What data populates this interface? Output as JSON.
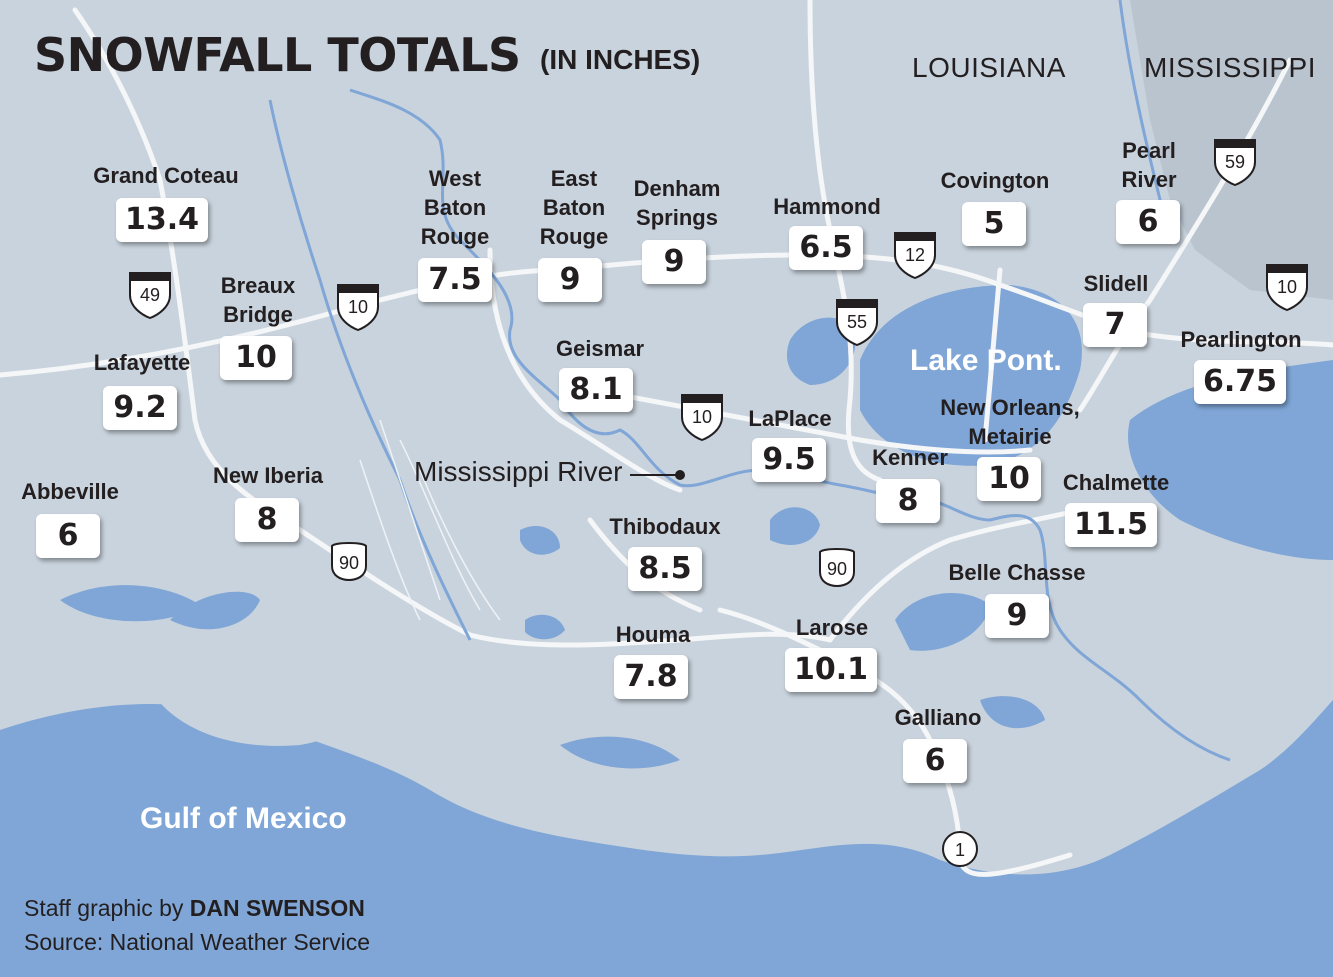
{
  "title": "SNOWFALL TOTALS",
  "subtitle": "(IN INCHES)",
  "states": [
    "LOUISIANA",
    "MISSISSIPPI"
  ],
  "water_labels": {
    "gulf": "Gulf of Mexico",
    "lake": "Lake Pont.",
    "river": "Mississippi River"
  },
  "highways": {
    "interstates": [
      "49",
      "10",
      "12",
      "55",
      "10",
      "59",
      "10"
    ],
    "us_routes": [
      "90",
      "90"
    ],
    "state_routes": [
      "1"
    ]
  },
  "locations": [
    {
      "name": "Grand Coteau",
      "value": "13.4"
    },
    {
      "name": "Breaux\nBridge",
      "value": "10"
    },
    {
      "name": "Lafayette",
      "value": "9.2"
    },
    {
      "name": "Abbeville",
      "value": "6"
    },
    {
      "name": "New Iberia",
      "value": "8"
    },
    {
      "name": "West\nBaton\nRouge",
      "value": "7.5"
    },
    {
      "name": "East\nBaton\nRouge",
      "value": "9"
    },
    {
      "name": "Denham\nSprings",
      "value": "9"
    },
    {
      "name": "Geismar",
      "value": "8.1"
    },
    {
      "name": "Hammond",
      "value": "6.5"
    },
    {
      "name": "Covington",
      "value": "5"
    },
    {
      "name": "Pearl\nRiver",
      "value": "6"
    },
    {
      "name": "Slidell",
      "value": "7"
    },
    {
      "name": "Pearlington",
      "value": "6.75"
    },
    {
      "name": "LaPlace",
      "value": "9.5"
    },
    {
      "name": "Kenner",
      "value": "8"
    },
    {
      "name": "New Orleans,\nMetairie",
      "value": "10"
    },
    {
      "name": "Chalmette",
      "value": "11.5"
    },
    {
      "name": "Thibodaux",
      "value": "8.5"
    },
    {
      "name": "Houma",
      "value": "7.8"
    },
    {
      "name": "Larose",
      "value": "10.1"
    },
    {
      "name": "Belle Chasse",
      "value": "9"
    },
    {
      "name": "Galliano",
      "value": "6"
    }
  ],
  "credit": {
    "prefix": "Staff graphic by ",
    "author": "DAN SWENSON",
    "source": "Source: National Weather Service"
  }
}
